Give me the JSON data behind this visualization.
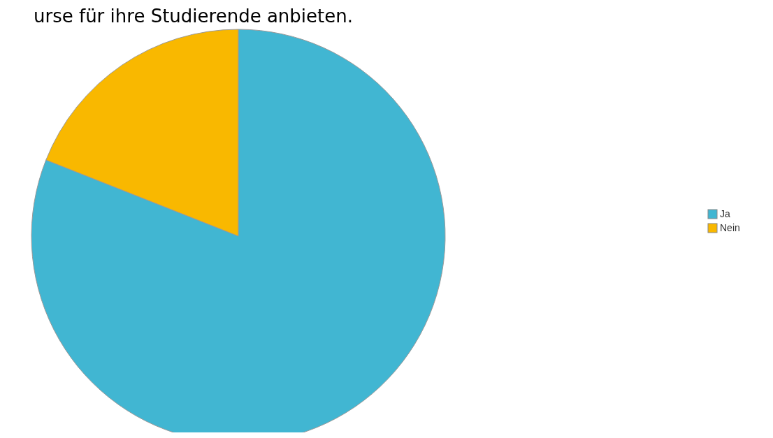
{
  "chart_data": {
    "type": "pie",
    "title": "urse für ihre Studierende anbieten.",
    "categories": [
      "Ja",
      "Nein"
    ],
    "values": [
      81,
      19
    ],
    "colors": [
      "#41b6d2",
      "#f9b800"
    ],
    "legend": "right"
  }
}
